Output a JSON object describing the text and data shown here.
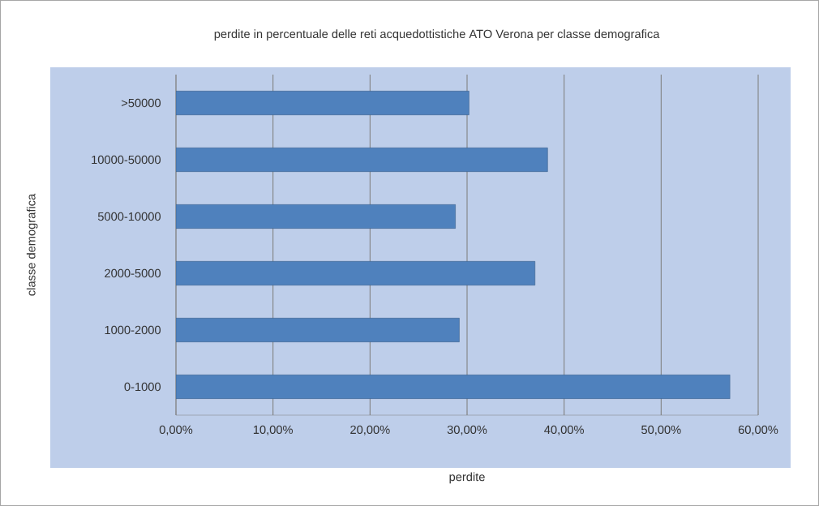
{
  "chart_data": {
    "type": "bar",
    "orientation": "horizontal",
    "title": "perdite in percentuale delle reti acquedottistiche ATO Verona per classe demografica",
    "xlabel": "perdite",
    "ylabel": "classe demografica",
    "categories": [
      ">50000",
      "10000-50000",
      "5000-10000",
      "2000-5000",
      "1000-2000",
      "0-1000"
    ],
    "values": [
      30.2,
      38.3,
      28.8,
      37.0,
      29.2,
      57.1
    ],
    "color": "#4f81bd",
    "xlim": [
      0,
      60
    ],
    "xticks": [
      {
        "value": 0,
        "label": "0,00%"
      },
      {
        "value": 10,
        "label": "10,00%"
      },
      {
        "value": 20,
        "label": "20,00%"
      },
      {
        "value": 30,
        "label": "30,00%"
      },
      {
        "value": 40,
        "label": "40,00%"
      },
      {
        "value": 50,
        "label": "50,00%"
      },
      {
        "value": 60,
        "label": "60,00%"
      }
    ],
    "grid": "x"
  }
}
